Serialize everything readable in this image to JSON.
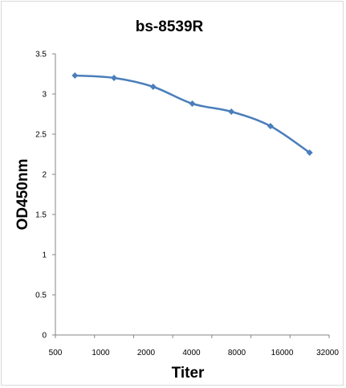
{
  "chart_data": {
    "type": "line",
    "title": "bs-8539R",
    "xlabel": "Titer",
    "ylabel": "OD450nm",
    "categories": [
      "500",
      "1000",
      "2000",
      "4000",
      "8000",
      "16000",
      "32000"
    ],
    "series": [
      {
        "values": [
          3.23,
          3.2,
          3.09,
          2.88,
          2.78,
          2.6,
          2.27
        ]
      }
    ],
    "ylim": [
      0,
      3.5
    ],
    "yticks": [
      "0",
      "0.5",
      "1",
      "1.5",
      "2",
      "2.5",
      "3",
      "3.5"
    ],
    "grid": false,
    "legend": "none",
    "line_color": "#4a7ebb"
  }
}
